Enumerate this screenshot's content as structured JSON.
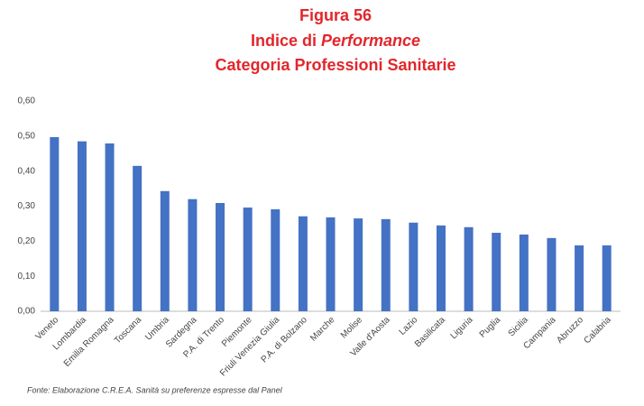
{
  "chart_data": {
    "type": "bar",
    "title": [
      "Figura 56",
      [
        "Indice di",
        "Performance"
      ],
      "Categoria Professioni Sanitarie"
    ],
    "categories": [
      "Veneto",
      "Lombardia",
      "Emilia Romagna",
      "Toscana",
      "Umbria",
      "Sardegna",
      "P.A. di Trento",
      "Piemonte",
      "Friuli Venezia Giulia",
      "P.A. di Bolzano",
      "Marche",
      "Molise",
      "Valle d'Aosta",
      "Lazio",
      "Basilicata",
      "Liguria",
      "Puglia",
      "Sicilia",
      "Campania",
      "Abruzzo",
      "Calabria"
    ],
    "values": [
      0.497,
      0.485,
      0.479,
      0.415,
      0.343,
      0.32,
      0.309,
      0.296,
      0.291,
      0.271,
      0.268,
      0.265,
      0.263,
      0.253,
      0.245,
      0.24,
      0.224,
      0.219,
      0.209,
      0.188,
      0.188
    ],
    "color": "#4472c4",
    "ylim": [
      0,
      0.6
    ],
    "yticks": [
      {
        "value": 0,
        "label": "0,00"
      },
      {
        "value": 0.1,
        "label": "0,10"
      },
      {
        "value": 0.2,
        "label": "0,20"
      },
      {
        "value": 0.3,
        "label": "0,30"
      },
      {
        "value": 0.4,
        "label": "0,40"
      },
      {
        "value": 0.5,
        "label": "0,50"
      },
      {
        "value": 0.6,
        "label": "0,60"
      }
    ],
    "grid": false,
    "source": "Fonte: Elaborazione C.R.E.A. Sanità su preferenze espresse dal Panel"
  }
}
